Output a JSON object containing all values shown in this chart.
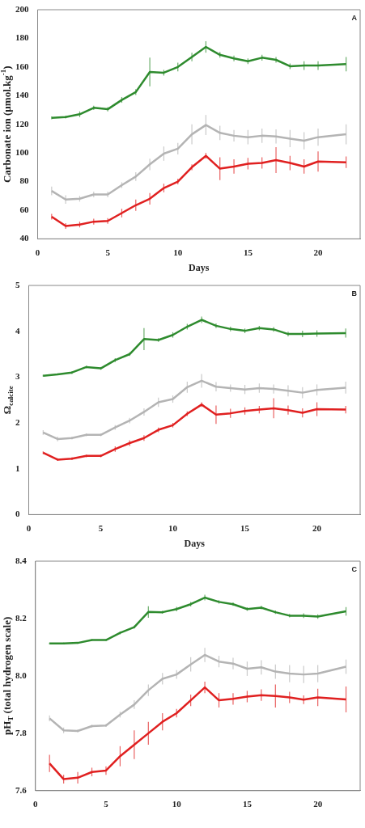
{
  "chart_data": [
    {
      "type": "line",
      "xlabel": "Days",
      "ylabel": "Carbonate ion (µmol.kg$^{-1}$)",
      "annotations": [
        "A"
      ],
      "x": [
        1,
        2,
        3,
        4,
        5,
        6,
        7,
        8,
        9,
        10,
        11,
        12,
        13,
        14,
        15,
        16,
        17,
        18,
        19,
        20,
        22
      ],
      "xlim": [
        0,
        23
      ],
      "xticks": [
        0,
        5,
        10,
        15,
        20
      ],
      "ylim": [
        40,
        200
      ],
      "yticks": [
        40,
        60,
        80,
        100,
        120,
        140,
        160,
        180,
        200
      ],
      "grid": false,
      "legend": false,
      "marker": "none",
      "line_style": "solid",
      "series": [
        {
          "color": "#2e8b2e",
          "values": [
            124.5,
            125,
            127,
            131.5,
            130.5,
            137,
            142.5,
            156.5,
            156,
            160,
            167,
            174,
            168.5,
            166,
            164,
            166.5,
            165,
            160.5,
            161,
            161,
            162
          ],
          "errors": [
            1,
            1,
            2,
            1.5,
            1.5,
            2,
            2,
            10,
            2,
            3,
            3,
            4,
            2,
            2,
            2,
            2,
            2,
            2,
            3,
            3,
            5
          ]
        },
        {
          "color": "#b4b4b4",
          "values": [
            73.5,
            67.5,
            68,
            71,
            71,
            77.5,
            83.5,
            92,
            99.5,
            103,
            113,
            119.5,
            114,
            112,
            111,
            112,
            111.5,
            110,
            108.5,
            111,
            113
          ],
          "errors": [
            3,
            3,
            2,
            2,
            2,
            2,
            3,
            4,
            5,
            4,
            7,
            7,
            5,
            4,
            5,
            5,
            5,
            6,
            6,
            6,
            7
          ]
        },
        {
          "color": "#e02020",
          "values": [
            55.5,
            49,
            50,
            52,
            52.5,
            58,
            63.5,
            68,
            75.5,
            80,
            90,
            98,
            89,
            90.5,
            92.5,
            93,
            95,
            93,
            90.5,
            94,
            93.5
          ],
          "errors": [
            2,
            2,
            2,
            2,
            2,
            3,
            4,
            4,
            3,
            2,
            2,
            2,
            8,
            5,
            4,
            4,
            9,
            5,
            5,
            7,
            4
          ]
        }
      ]
    },
    {
      "type": "line",
      "xlabel": "Days",
      "ylabel": "Ω$_{calcite}$",
      "annotations": [
        "B"
      ],
      "x": [
        1,
        2,
        3,
        4,
        5,
        6,
        7,
        8,
        9,
        10,
        11,
        12,
        13,
        14,
        15,
        16,
        17,
        18,
        19,
        20,
        22
      ],
      "xlim": [
        0,
        23
      ],
      "xticks": [
        0,
        5,
        10,
        15,
        20
      ],
      "ylim": [
        0,
        5
      ],
      "yticks": [
        0,
        1,
        2,
        3,
        4,
        5
      ],
      "grid": false,
      "legend": false,
      "marker": "none",
      "line_style": "solid",
      "series": [
        {
          "color": "#2e8b2e",
          "values": [
            3.03,
            3.06,
            3.1,
            3.22,
            3.19,
            3.37,
            3.5,
            3.83,
            3.81,
            3.92,
            4.1,
            4.25,
            4.12,
            4.05,
            4.01,
            4.07,
            4.04,
            3.94,
            3.94,
            3.95,
            3.96
          ],
          "errors": [
            0.02,
            0.02,
            0.03,
            0.03,
            0.03,
            0.04,
            0.04,
            0.24,
            0.04,
            0.06,
            0.06,
            0.07,
            0.05,
            0.05,
            0.05,
            0.05,
            0.05,
            0.05,
            0.07,
            0.07,
            0.1
          ]
        },
        {
          "color": "#b4b4b4",
          "values": [
            1.79,
            1.65,
            1.67,
            1.74,
            1.74,
            1.9,
            2.05,
            2.24,
            2.45,
            2.52,
            2.78,
            2.92,
            2.79,
            2.76,
            2.73,
            2.76,
            2.74,
            2.7,
            2.66,
            2.72,
            2.77
          ],
          "errors": [
            0.05,
            0.05,
            0.03,
            0.03,
            0.03,
            0.05,
            0.06,
            0.08,
            0.1,
            0.08,
            0.12,
            0.15,
            0.1,
            0.08,
            0.1,
            0.1,
            0.1,
            0.12,
            0.12,
            0.12,
            0.13
          ]
        },
        {
          "color": "#e02020",
          "values": [
            1.35,
            1.2,
            1.22,
            1.28,
            1.28,
            1.43,
            1.56,
            1.67,
            1.85,
            1.95,
            2.2,
            2.4,
            2.18,
            2.21,
            2.26,
            2.29,
            2.32,
            2.28,
            2.22,
            2.3,
            2.29
          ],
          "errors": [
            0.03,
            0.03,
            0.03,
            0.03,
            0.03,
            0.06,
            0.06,
            0.06,
            0.05,
            0.05,
            0.05,
            0.05,
            0.2,
            0.1,
            0.08,
            0.08,
            0.22,
            0.1,
            0.1,
            0.15,
            0.08
          ]
        }
      ]
    },
    {
      "type": "line",
      "ylabel": "pH$_{T}$ (total hydrogen scale)",
      "annotations": [
        "C"
      ],
      "x": [
        1,
        2,
        3,
        4,
        5,
        6,
        7,
        8,
        9,
        10,
        11,
        12,
        13,
        14,
        15,
        16,
        17,
        18,
        19,
        20,
        22
      ],
      "xlim": [
        0,
        23
      ],
      "xticks": [
        0,
        5,
        10,
        15,
        20
      ],
      "ylim": [
        7.6,
        8.4
      ],
      "yticks": [
        {
          "value": 7.6,
          "label": "7.6"
        },
        {
          "value": 7.8,
          "label": "7.8"
        },
        {
          "value": 8.0,
          "label": "8.0"
        },
        {
          "value": 8.2,
          "label": "8.2"
        },
        {
          "value": 8.4,
          "label": "8.4"
        }
      ],
      "grid": false,
      "legend": false,
      "marker": "none",
      "line_style": "solid",
      "series": [
        {
          "color": "#2e8b2e",
          "values": [
            8.113,
            8.113,
            8.115,
            8.125,
            8.125,
            8.15,
            8.17,
            8.223,
            8.222,
            8.233,
            8.25,
            8.273,
            8.258,
            8.25,
            8.233,
            8.238,
            8.222,
            8.21,
            8.21,
            8.207,
            8.225
          ],
          "errors": [
            0.003,
            0.003,
            0.003,
            0.003,
            0.003,
            0.005,
            0.005,
            0.02,
            0.005,
            0.008,
            0.008,
            0.01,
            0.006,
            0.006,
            0.006,
            0.006,
            0.006,
            0.006,
            0.008,
            0.008,
            0.015
          ]
        },
        {
          "color": "#b4b4b4",
          "values": [
            7.852,
            7.81,
            7.808,
            7.825,
            7.827,
            7.865,
            7.9,
            7.95,
            7.99,
            8.005,
            8.04,
            8.073,
            8.05,
            8.043,
            8.025,
            8.03,
            8.015,
            8.008,
            8.005,
            8.008,
            8.032
          ],
          "errors": [
            0.01,
            0.01,
            0.005,
            0.005,
            0.005,
            0.01,
            0.015,
            0.02,
            0.02,
            0.015,
            0.025,
            0.025,
            0.02,
            0.02,
            0.025,
            0.025,
            0.025,
            0.03,
            0.03,
            0.03,
            0.025
          ]
        },
        {
          "color": "#e02020",
          "values": [
            7.695,
            7.64,
            7.645,
            7.665,
            7.67,
            7.72,
            7.76,
            7.8,
            7.84,
            7.87,
            7.915,
            7.96,
            7.915,
            7.92,
            7.928,
            7.933,
            7.93,
            7.925,
            7.917,
            7.925,
            7.918
          ],
          "errors": [
            0.03,
            0.015,
            0.02,
            0.015,
            0.015,
            0.035,
            0.05,
            0.04,
            0.03,
            0.015,
            0.02,
            0.02,
            0.025,
            0.02,
            0.02,
            0.02,
            0.04,
            0.02,
            0.015,
            0.03,
            0.045
          ]
        }
      ]
    }
  ]
}
